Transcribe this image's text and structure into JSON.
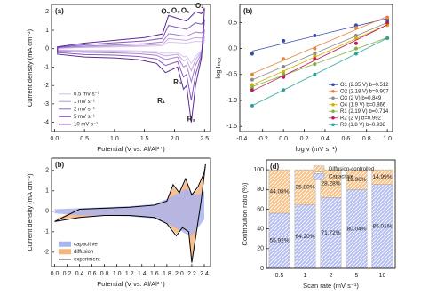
{
  "chart_data": [
    {
      "type": "line",
      "label": "(a)",
      "x_label": "Potential (V vs. Al/Al³⁺)",
      "y_label": "Current density (mA cm⁻²)",
      "x": [
        0.05,
        0.5,
        1.0,
        1.5,
        1.8,
        1.9,
        2.0,
        2.1,
        2.2,
        2.35,
        2.45,
        2.5,
        2.45,
        2.35,
        2.28,
        2.2,
        2.15,
        2.05,
        1.85,
        1.7,
        1.4,
        1.0,
        0.5,
        0.05
      ],
      "series": [
        {
          "name": "0.5 mV s⁻¹",
          "color": "#d9c8ec",
          "values": [
            0.02,
            0.06,
            0.09,
            0.12,
            0.16,
            0.36,
            0.34,
            0.32,
            0.3,
            0.4,
            0.38,
            0.44,
            -0.1,
            -0.4,
            -0.8,
            -0.4,
            -0.44,
            -0.2,
            -0.26,
            -0.16,
            -0.12,
            -0.1,
            -0.09,
            -0.06
          ]
        },
        {
          "name": "1 mV s⁻¹",
          "color": "#c2a5e0",
          "values": [
            0.03,
            0.09,
            0.14,
            0.18,
            0.24,
            0.54,
            0.51,
            0.48,
            0.45,
            0.6,
            0.57,
            0.66,
            -0.15,
            -0.6,
            -1.2,
            -0.6,
            -0.66,
            -0.3,
            -0.39,
            -0.24,
            -0.18,
            -0.15,
            -0.14,
            -0.09
          ]
        },
        {
          "name": "2 mV s⁻¹",
          "color": "#a57fcf",
          "values": [
            0.05,
            0.14,
            0.2,
            0.27,
            0.36,
            0.81,
            0.77,
            0.72,
            0.68,
            0.9,
            0.86,
            0.99,
            -0.23,
            -0.9,
            -1.8,
            -0.9,
            -0.99,
            -0.45,
            -0.59,
            -0.36,
            -0.27,
            -0.23,
            -0.2,
            -0.14
          ]
        },
        {
          "name": "5 mV s⁻¹",
          "color": "#8556bb",
          "values": [
            0.07,
            0.21,
            0.32,
            0.42,
            0.56,
            1.26,
            1.19,
            1.12,
            1.05,
            1.4,
            1.33,
            1.54,
            -0.35,
            -1.4,
            -2.8,
            -1.4,
            -1.54,
            -0.7,
            -0.91,
            -0.56,
            -0.42,
            -0.35,
            -0.32,
            -0.21
          ]
        },
        {
          "name": "10 mV s⁻¹",
          "color": "#5b2a93",
          "values": [
            0.1,
            0.3,
            0.45,
            0.6,
            0.8,
            1.8,
            1.7,
            1.6,
            1.5,
            2.0,
            1.9,
            2.2,
            -0.5,
            -2.0,
            -4.0,
            -2.0,
            -2.2,
            -1.0,
            -1.3,
            -0.8,
            -0.6,
            -0.5,
            -0.45,
            -0.3
          ]
        }
      ],
      "xlim": [
        -0.05,
        2.6
      ],
      "ylim": [
        -4.5,
        2.4
      ],
      "xticks": [
        {
          "value": 0,
          "label": "0.0"
        },
        0.5,
        {
          "value": 1,
          "label": "1.0"
        },
        1.5,
        {
          "value": 2,
          "label": "2.0"
        },
        2.5
      ],
      "yticks": [
        -4,
        -3,
        -2,
        -1,
        0,
        1,
        2
      ],
      "legend": "lower left",
      "annotations": [
        {
          "text": "O₄",
          "x": 1.85,
          "y": 2.0,
          "color": "#c98a1a"
        },
        {
          "text": "O₃",
          "x": 2.02,
          "y": 2.05,
          "color": "#555555"
        },
        {
          "text": "O₁",
          "x": 2.18,
          "y": 2.05,
          "color": "#3b4cc0"
        },
        {
          "text": "O₂",
          "x": 2.42,
          "y": 2.3,
          "color": "#e27c2c"
        },
        {
          "text": "R₁",
          "x": 1.78,
          "y": -2.85,
          "color": "#3c9a3c"
        },
        {
          "text": "R₂",
          "x": 2.05,
          "y": -1.85,
          "color": "#3b82c4"
        },
        {
          "text": "R₃",
          "x": 2.28,
          "y": -3.85,
          "color": "#e27c2c"
        }
      ]
    },
    {
      "type": "scatter",
      "label": "(b)",
      "x_label": "log v (mV s⁻¹)",
      "y_label": "log Iₘₐₓ",
      "x": [
        -0.301,
        0,
        0.301,
        0.699,
        1
      ],
      "series": [
        {
          "name": "O1 (2.35 V) b=0.512",
          "color": "#3949ab",
          "values": [
            -0.1,
            0.15,
            0.25,
            0.45,
            0.55
          ]
        },
        {
          "name": "O2 (2.18 V) b=0.907",
          "color": "#e8833a",
          "values": [
            -0.5,
            -0.2,
            0.0,
            0.4,
            0.6
          ]
        },
        {
          "name": "O3 (2 V) b=0.849",
          "color": "#8a8a8a",
          "values": [
            -0.6,
            -0.35,
            -0.1,
            0.25,
            0.5
          ]
        },
        {
          "name": "O4 (1.9 V) b=0.866",
          "color": "#d4b000",
          "values": [
            -0.7,
            -0.45,
            -0.15,
            0.2,
            0.45
          ]
        },
        {
          "name": "R1 (2.19 V) b=0.714",
          "color": "#7cb342",
          "values": [
            -0.75,
            -0.5,
            -0.3,
            0.0,
            0.2
          ]
        },
        {
          "name": "R2 (2 V) b=0.992",
          "color": "#c2185b",
          "values": [
            -0.8,
            -0.55,
            -0.2,
            0.1,
            0.5
          ]
        },
        {
          "name": "R3 (1.8 V) b=0.938",
          "color": "#26a69a",
          "values": [
            -1.1,
            -0.8,
            -0.5,
            -0.1,
            0.2
          ]
        }
      ],
      "xlim": [
        -0.42,
        1.05
      ],
      "ylim": [
        -1.6,
        0.85
      ],
      "xticks": [
        -0.4,
        -0.2,
        {
          "value": 0,
          "label": "0.0"
        },
        0.2,
        0.4,
        0.6,
        0.8,
        {
          "value": 1,
          "label": "1.0"
        }
      ],
      "yticks": [
        -1.5,
        {
          "value": -1,
          "label": "-1.0"
        },
        -0.5,
        {
          "value": 0,
          "label": "0.0"
        },
        0.5
      ],
      "legend": "lower right"
    },
    {
      "type": "line",
      "label": "(b)",
      "x_label": "Potential (V vs. Al/Al³⁺)",
      "y_label": "Current density (mA cm⁻²)",
      "series": [
        {
          "name": "capacitive",
          "color": "#aab4ee",
          "fill": true,
          "x": [
            0.0,
            0.4,
            0.8,
            1.2,
            1.6,
            1.8,
            2.0,
            2.1,
            2.2,
            2.3,
            2.4,
            2.4,
            2.3,
            2.2,
            2.1,
            2.0,
            1.8,
            1.6,
            1.2,
            0.8,
            0.4,
            0.0
          ],
          "values": [
            0.1,
            0.15,
            0.2,
            0.25,
            0.35,
            0.6,
            0.9,
            1.1,
            0.9,
            0.8,
            1.0,
            -0.4,
            -0.8,
            -1.2,
            -1.1,
            -0.9,
            -0.6,
            -0.35,
            -0.25,
            -0.2,
            -0.2,
            -0.1
          ]
        },
        {
          "name": "diffusion",
          "color": "#f6b57a",
          "fill": true,
          "x": [
            0.0,
            0.4,
            0.8,
            1.2,
            1.6,
            1.8,
            1.9,
            2.0,
            2.1,
            2.2,
            2.3,
            2.4,
            2.42,
            2.35,
            2.3,
            2.25,
            2.2,
            2.15,
            2.05,
            1.95,
            1.8,
            1.6,
            1.2,
            0.8,
            0.4,
            0.0
          ],
          "values": [
            -0.4,
            0.12,
            0.17,
            0.22,
            0.32,
            0.5,
            1.2,
            0.85,
            1.5,
            0.75,
            1.1,
            1.8,
            2.2,
            0.4,
            -0.6,
            -1.4,
            -2.4,
            -1.1,
            -0.8,
            -1.1,
            -0.55,
            -0.3,
            -0.2,
            -0.2,
            -0.3,
            -0.4
          ]
        },
        {
          "name": "experiment",
          "color": "#000000",
          "x": [
            0.0,
            0.4,
            0.8,
            1.2,
            1.6,
            1.8,
            1.9,
            2.0,
            2.1,
            2.2,
            2.3,
            2.4,
            2.42,
            2.35,
            2.3,
            2.25,
            2.2,
            2.15,
            2.05,
            1.95,
            1.8,
            1.6,
            1.2,
            0.8,
            0.4,
            0.0
          ],
          "values": [
            -0.5,
            0.1,
            0.15,
            0.2,
            0.3,
            0.5,
            1.3,
            0.9,
            1.6,
            0.8,
            1.2,
            1.9,
            2.3,
            0.5,
            -0.5,
            -1.5,
            -2.5,
            -1.0,
            -0.8,
            -1.2,
            -0.6,
            -0.3,
            -0.2,
            -0.2,
            -0.3,
            -0.5
          ]
        }
      ],
      "xlim": [
        -0.05,
        2.5
      ],
      "ylim": [
        -2.7,
        2.6
      ],
      "xticks": [
        {
          "value": 0,
          "label": "0.0"
        },
        0.2,
        0.4,
        0.6,
        0.8,
        {
          "value": 1,
          "label": "1.0"
        },
        1.2,
        1.4,
        1.6,
        1.8,
        {
          "value": 2,
          "label": "2.0"
        },
        2.2,
        2.4
      ],
      "yticks": [
        -2,
        -1,
        0,
        1,
        2
      ],
      "legend": "lower left"
    },
    {
      "type": "bar",
      "stacked": true,
      "label": "(d)",
      "x_label": "Scan rate (mV s⁻¹)",
      "y_label": "Contribution ratio (%)",
      "categories": [
        "0.5",
        "1",
        "2",
        "5",
        "10"
      ],
      "series": [
        {
          "name": "Capacitive",
          "color": "#b8c0f2",
          "values": [
            55.92,
            64.2,
            71.72,
            80.04,
            85.01
          ],
          "value_labels": [
            "55.92%",
            "64.20%",
            "71.72%",
            "80.04%",
            "85.01%"
          ]
        },
        {
          "name": "Diffusion-controlled",
          "color": "#f7c48a",
          "values": [
            44.08,
            35.8,
            28.28,
            19.96,
            14.99
          ],
          "value_labels": [
            "44.08%",
            "35.80%",
            "28.28%",
            "19.96%",
            "14.99%"
          ]
        }
      ],
      "ylim": [
        0,
        110
      ],
      "yticks": [
        0,
        20,
        40,
        60,
        80,
        100
      ],
      "legend": "upper right"
    }
  ]
}
